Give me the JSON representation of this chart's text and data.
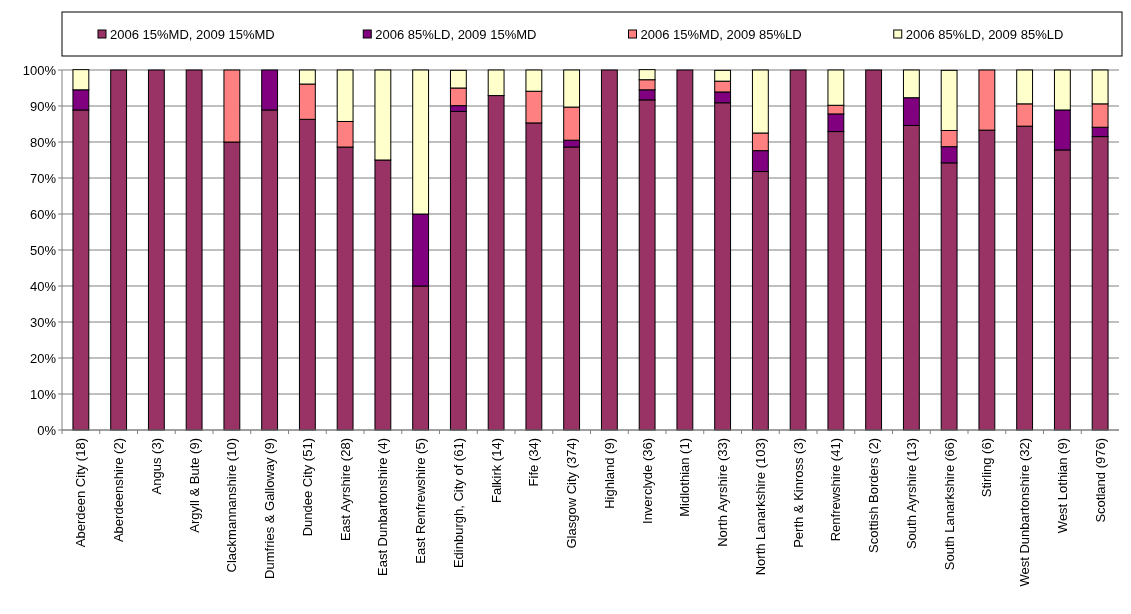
{
  "chart_data": {
    "type": "bar",
    "stacked": true,
    "legend": "top",
    "grid": "y",
    "categories": [
      "Aberdeen City (18)",
      "Aberdeenshire (2)",
      "Angus (3)",
      "Argyll & Bute (9)",
      "Clackmannanshire (10)",
      "Dumfries & Galloway (9)",
      "Dundee City (51)",
      "East Ayrshire (28)",
      "East Dunbartonshire (4)",
      "East Renfrewshire (5)",
      "Edinburgh, City of (61)",
      "Falkirk (14)",
      "Fife (34)",
      "Glasgow City (374)",
      "Highland (9)",
      "Inverclyde (36)",
      "Midlothian (1)",
      "North Ayrshire (33)",
      "North Lanarkshire (103)",
      "Perth & Kinross (3)",
      "Renfrewshire (41)",
      "Scottish Borders (2)",
      "South Ayrshire (13)",
      "South Lanarkshire (66)",
      "Stirling (6)",
      "West Dunbartonshire (32)",
      "West Lothian (9)",
      "Scotland (976)"
    ],
    "ylim": [
      0,
      100
    ],
    "yticks": [
      {
        "value": 0,
        "label": "0%"
      },
      {
        "value": 10,
        "label": "10%"
      },
      {
        "value": 20,
        "label": "20%"
      },
      {
        "value": 30,
        "label": "30%"
      },
      {
        "value": 40,
        "label": "40%"
      },
      {
        "value": 50,
        "label": "50%"
      },
      {
        "value": 60,
        "label": "60%"
      },
      {
        "value": 70,
        "label": "70%"
      },
      {
        "value": 80,
        "label": "80%"
      },
      {
        "value": 90,
        "label": "90%"
      },
      {
        "value": 100,
        "label": "100%"
      }
    ],
    "series": [
      {
        "name": "2006 15%MD, 2009 15%MD",
        "color": "#993366",
        "values": [
          88.9,
          100,
          100,
          100,
          80,
          88.9,
          86.3,
          78.6,
          75,
          40,
          88.5,
          92.9,
          85.3,
          78.6,
          100,
          91.7,
          100,
          90.9,
          71.8,
          100,
          82.9,
          100,
          84.6,
          74.2,
          83.3,
          84.4,
          77.8,
          81.5
        ]
      },
      {
        "name": "2006 85%LD, 2009 15%MD",
        "color": "#800080",
        "values": [
          5.6,
          0,
          0,
          0,
          0,
          11.1,
          0,
          0,
          0,
          20,
          1.6,
          0,
          0,
          1.9,
          0,
          2.8,
          0,
          3.0,
          5.8,
          0,
          4.9,
          0,
          7.7,
          4.5,
          0,
          0,
          11.1,
          2.6
        ]
      },
      {
        "name": "2006 15%MD, 2009 85%LD",
        "color": "#ff8080",
        "values": [
          0,
          0,
          0,
          0,
          20,
          0,
          9.8,
          7.1,
          0,
          0,
          4.9,
          0,
          8.8,
          9.2,
          0,
          2.8,
          0,
          3.0,
          4.9,
          0,
          2.4,
          0,
          0,
          4.5,
          16.7,
          6.2,
          0,
          6.5
        ]
      },
      {
        "name": "2006 85%LD, 2009 85%LD",
        "color": "#ffffcc",
        "values": [
          5.6,
          0,
          0,
          0,
          0,
          0,
          3.9,
          14.3,
          25,
          40,
          4.9,
          7.1,
          5.9,
          10.3,
          0,
          2.8,
          0,
          3.0,
          17.5,
          0,
          9.8,
          0,
          7.7,
          16.7,
          0,
          9.4,
          11.1,
          9.4
        ]
      }
    ]
  }
}
